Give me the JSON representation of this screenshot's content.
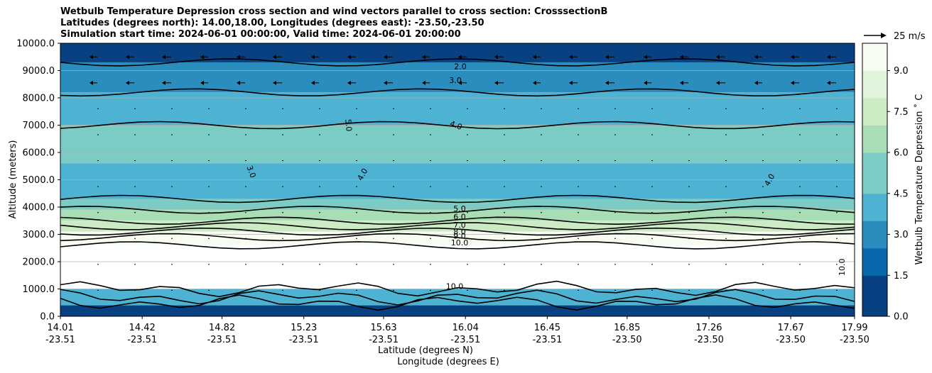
{
  "chart_data": {
    "type": "heatmap",
    "title_lines": [
      "Wetbulb Temperature Depression cross section and wind vectors parallel to cross section: CrosssectionB",
      "Latitudes (degrees north): 14.00,18.00, Longitudes (degrees east): -23.50,-23.50",
      "Simulation start time: 2024-06-01 00:00:00, Valid time: 2024-06-01 20:00:00"
    ],
    "xlabel_lines": [
      "Latitude (degrees N)",
      "Longitude (degrees E)"
    ],
    "ylabel": "Altitude (meters)",
    "x_ticks": [
      {
        "lat": "14.01",
        "lon": "-23.51"
      },
      {
        "lat": "14.42",
        "lon": "-23.51"
      },
      {
        "lat": "14.82",
        "lon": "-23.51"
      },
      {
        "lat": "15.23",
        "lon": "-23.51"
      },
      {
        "lat": "15.63",
        "lon": "-23.51"
      },
      {
        "lat": "16.04",
        "lon": "-23.51"
      },
      {
        "lat": "16.45",
        "lon": "-23.51"
      },
      {
        "lat": "16.85",
        "lon": "-23.50"
      },
      {
        "lat": "17.26",
        "lon": "-23.50"
      },
      {
        "lat": "17.67",
        "lon": "-23.50"
      },
      {
        "lat": "17.99",
        "lon": "-23.50"
      }
    ],
    "y_ticks": [
      "0.0",
      "1000.0",
      "2000.0",
      "3000.0",
      "4000.0",
      "5000.0",
      "6000.0",
      "7000.0",
      "8000.0",
      "9000.0",
      "10000.0"
    ],
    "ylim": [
      0,
      10000
    ],
    "grid": "horizontal",
    "colorbar": {
      "label": "Wetbulb Temperature Depression ˚ C",
      "ticks": [
        "0.0",
        "1.5",
        "3.0",
        "4.5",
        "6.0",
        "7.5",
        "9.0"
      ],
      "range": [
        0,
        10
      ],
      "colors": [
        "#084081",
        "#0868ac",
        "#2b8cbe",
        "#4eb3d3",
        "#7bccc4",
        "#a8ddb5",
        "#ccebc5",
        "#e0f3db",
        "#f7fcf0"
      ]
    },
    "quiver_key": {
      "label": "25 m/s"
    },
    "contour_labels": [
      "2.0",
      "3.0",
      "4.0",
      "5.0",
      "3.0",
      "4.0",
      "4.0",
      "5.0",
      "6.0",
      "7.0",
      "8.0",
      "9.0",
      "10.0",
      "10.0",
      "10.0"
    ],
    "layers_altitude_m": [
      {
        "bottom": 9300,
        "top": 10000,
        "value": 1.0
      },
      {
        "bottom": 8200,
        "top": 9300,
        "value": 2.5
      },
      {
        "bottom": 7000,
        "top": 8200,
        "value": 4.0
      },
      {
        "bottom": 5600,
        "top": 7000,
        "value": 4.8
      },
      {
        "bottom": 4300,
        "top": 5600,
        "value": 3.6
      },
      {
        "bottom": 3900,
        "top": 4300,
        "value": 4.6
      },
      {
        "bottom": 3500,
        "top": 3900,
        "value": 6.2
      },
      {
        "bottom": 3100,
        "top": 3500,
        "value": 7.6
      },
      {
        "bottom": 2600,
        "top": 3100,
        "value": 9.2
      },
      {
        "bottom": 1000,
        "top": 2600,
        "value": 11.0
      },
      {
        "bottom": 400,
        "top": 1000,
        "value": 3.5
      },
      {
        "bottom": 0,
        "top": 400,
        "value": 0.8
      }
    ]
  }
}
